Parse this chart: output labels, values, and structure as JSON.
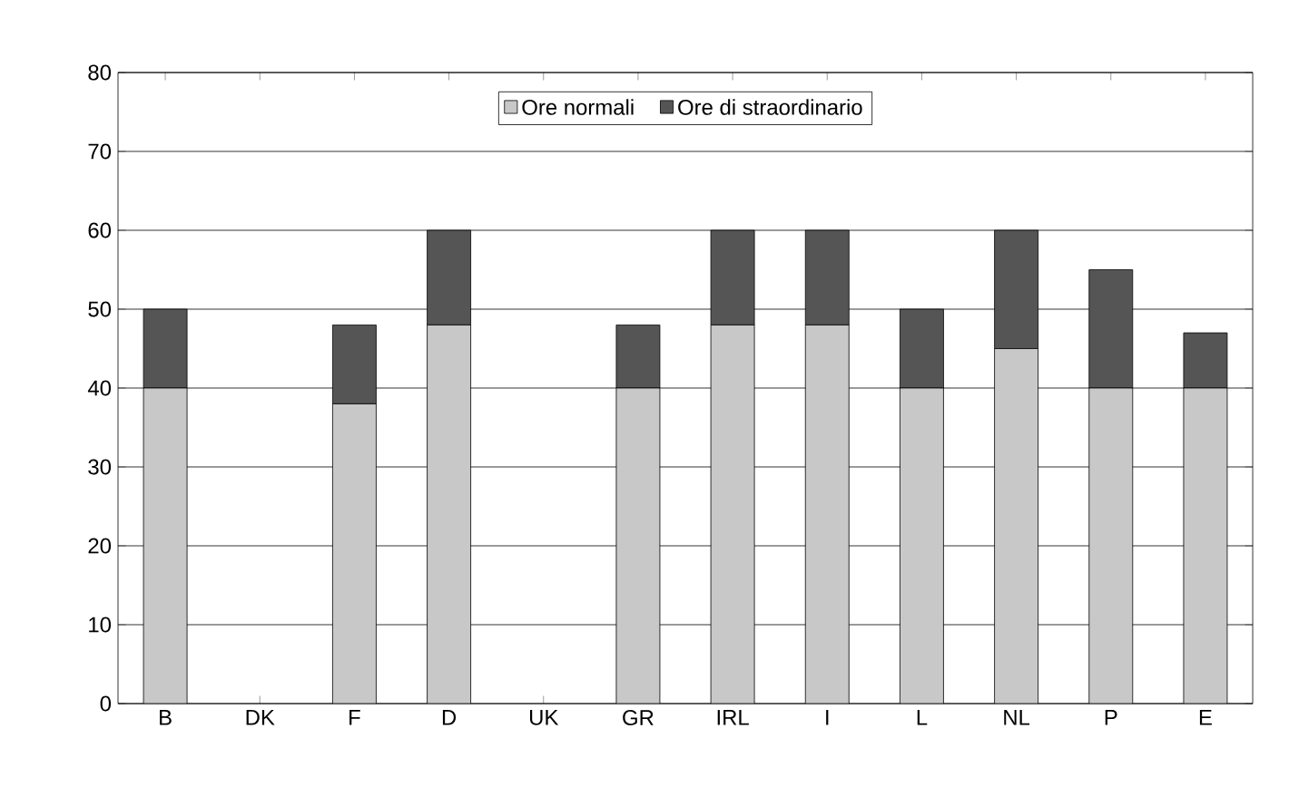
{
  "chart_data": {
    "type": "bar",
    "stacked": true,
    "categories": [
      "B",
      "DK",
      "F",
      "D",
      "UK",
      "GR",
      "IRL",
      "I",
      "L",
      "NL",
      "P",
      "E"
    ],
    "series": [
      {
        "name": "Ore normali",
        "color": "#c8c8c8",
        "values": [
          40,
          0,
          38,
          48,
          0,
          40,
          48,
          48,
          40,
          45,
          40,
          40
        ]
      },
      {
        "name": "Ore di straordinario",
        "color": "#555555",
        "values": [
          10,
          0,
          10,
          12,
          0,
          8,
          12,
          12,
          10,
          15,
          15,
          7
        ]
      }
    ],
    "ylim": [
      0,
      80
    ],
    "yticks": [
      0,
      10,
      20,
      30,
      40,
      50,
      60,
      70,
      80
    ],
    "grid": "y",
    "legend": "top"
  }
}
